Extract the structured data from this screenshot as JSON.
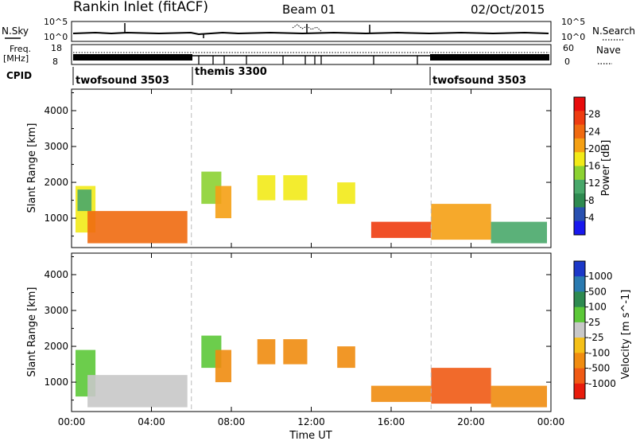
{
  "header": {
    "station": "Rankin Inlet (fitACF)",
    "beam": "Beam 01",
    "date": "02/Oct/2015"
  },
  "summary_panels": {
    "nsky_label": "N.Sky",
    "nsky_ticks": [
      "10^5",
      "10^0"
    ],
    "nsearch_label": "N.Search",
    "nsearch_ticks": [
      "10^5",
      "10^0"
    ],
    "freq_label": "Freq.",
    "freq_unit": "[MHz]",
    "freq_ticks": [
      "18",
      "8"
    ],
    "nave_label": "Nave",
    "nave_ticks": [
      "60",
      "0"
    ],
    "cpid_label": "CPID",
    "cpid_segments": [
      {
        "name": "twofsound 3503",
        "start": 0,
        "end": 6
      },
      {
        "name": "themis 3300",
        "start": 6,
        "end": 18
      },
      {
        "name": "twofsound 3503",
        "start": 18,
        "end": 24
      }
    ]
  },
  "chart_data": [
    {
      "type": "heatmap",
      "panel": "power",
      "xlabel": "",
      "ylabel": "Slant Range [km]",
      "xlim": [
        0,
        24
      ],
      "ylim": [
        180,
        4600
      ],
      "ytick_labels": [
        "1000",
        "2000",
        "3000",
        "4000"
      ],
      "ytick_values": [
        1000,
        2000,
        3000,
        4000
      ],
      "colorbar": {
        "label": "Power [dB]",
        "tick_labels": [
          "4",
          "8",
          "12",
          "16",
          "20",
          "24",
          "28"
        ],
        "colors": [
          "#1818ee",
          "#2850b0",
          "#2e8a50",
          "#49a86a",
          "#8cd232",
          "#f2ea18",
          "#f5a014",
          "#f06a10",
          "#ee3c10",
          "#e80c0c"
        ],
        "range": [
          0,
          32
        ]
      },
      "regions": [
        {
          "t0": 0.2,
          "t1": 1.2,
          "r0": 600,
          "r1": 1900,
          "v": 16
        },
        {
          "t0": 0.8,
          "t1": 5.8,
          "r0": 300,
          "r1": 1200,
          "v": 25
        },
        {
          "t0": 0.3,
          "t1": 1.0,
          "r0": 1200,
          "r1": 1800,
          "v": 12
        },
        {
          "t0": 6.5,
          "t1": 7.5,
          "r0": 1400,
          "r1": 2300,
          "v": 14
        },
        {
          "t0": 7.2,
          "t1": 8.0,
          "r0": 1000,
          "r1": 1900,
          "v": 20
        },
        {
          "t0": 9.3,
          "t1": 10.2,
          "r0": 1500,
          "r1": 2200,
          "v": 18
        },
        {
          "t0": 10.6,
          "t1": 11.8,
          "r0": 1500,
          "r1": 2200,
          "v": 19
        },
        {
          "t0": 13.3,
          "t1": 14.2,
          "r0": 1400,
          "r1": 2000,
          "v": 17
        },
        {
          "t0": 15.0,
          "t1": 18.0,
          "r0": 450,
          "r1": 900,
          "v": 26
        },
        {
          "t0": 18.0,
          "t1": 21.0,
          "r0": 400,
          "r1": 1400,
          "v": 20
        },
        {
          "t0": 21.0,
          "t1": 23.8,
          "r0": 300,
          "r1": 900,
          "v": 11
        }
      ]
    },
    {
      "type": "heatmap",
      "panel": "velocity",
      "xlabel": "Time UT",
      "ylabel": "Slant Range [km]",
      "xlim": [
        0,
        24
      ],
      "ylim": [
        180,
        4600
      ],
      "xtick_labels": [
        "00:00",
        "04:00",
        "08:00",
        "12:00",
        "16:00",
        "20:00",
        "00:00"
      ],
      "xtick_values": [
        0,
        4,
        8,
        12,
        16,
        20,
        24
      ],
      "ytick_labels": [
        "1000",
        "2000",
        "3000",
        "4000"
      ],
      "ytick_values": [
        1000,
        2000,
        3000,
        4000
      ],
      "colorbar": {
        "label": "Velocity [m s^-1]",
        "tick_labels": [
          "1000",
          "500",
          "100",
          "25",
          "-25",
          "-100",
          "-500",
          "-1000"
        ],
        "colors": [
          "#1c38c8",
          "#2a7ab0",
          "#2e8a50",
          "#5cc838",
          "#c8c8c8",
          "#f5c018",
          "#f08c10",
          "#f05a14",
          "#e81c0c"
        ]
      },
      "regions": [
        {
          "t0": 0.2,
          "t1": 1.2,
          "r0": 600,
          "r1": 1900,
          "v": 60
        },
        {
          "t0": 0.8,
          "t1": 5.8,
          "r0": 300,
          "r1": 1200,
          "v": 0
        },
        {
          "t0": 6.5,
          "t1": 7.5,
          "r0": 1400,
          "r1": 2300,
          "v": 60
        },
        {
          "t0": 7.2,
          "t1": 8.0,
          "r0": 1000,
          "r1": 1900,
          "v": -150
        },
        {
          "t0": 9.3,
          "t1": 10.2,
          "r0": 1500,
          "r1": 2200,
          "v": -150
        },
        {
          "t0": 10.6,
          "t1": 11.8,
          "r0": 1500,
          "r1": 2200,
          "v": -200
        },
        {
          "t0": 13.3,
          "t1": 14.2,
          "r0": 1400,
          "r1": 2000,
          "v": -200
        },
        {
          "t0": 15.0,
          "t1": 18.0,
          "r0": 450,
          "r1": 900,
          "v": -300
        },
        {
          "t0": 18.0,
          "t1": 21.0,
          "r0": 400,
          "r1": 1400,
          "v": -700
        },
        {
          "t0": 21.0,
          "t1": 23.8,
          "r0": 300,
          "r1": 900,
          "v": -150
        }
      ]
    }
  ]
}
